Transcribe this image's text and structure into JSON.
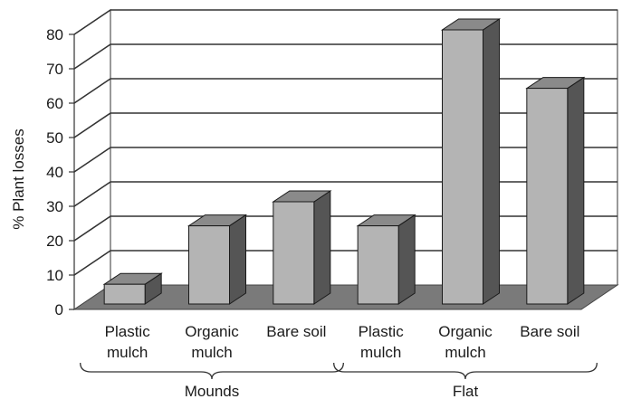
{
  "chart_data": {
    "type": "bar",
    "style": "3d",
    "ylabel": "% Plant losses",
    "ylim": [
      0,
      80
    ],
    "yticks": [
      "0",
      "10",
      "20",
      "30",
      "40",
      "50",
      "60",
      "70",
      "80"
    ],
    "categories": [
      {
        "line1": "Plastic",
        "line2": "mulch",
        "group": "Mounds"
      },
      {
        "line1": "Organic",
        "line2": "mulch",
        "group": "Mounds"
      },
      {
        "line1": "Bare soil",
        "line2": "",
        "group": "Mounds"
      },
      {
        "line1": "Plastic",
        "line2": "mulch",
        "group": "Flat"
      },
      {
        "line1": "Organic",
        "line2": "mulch",
        "group": "Flat"
      },
      {
        "line1": "Bare soil",
        "line2": "",
        "group": "Flat"
      }
    ],
    "values": [
      6,
      23,
      30,
      23,
      80,
      63
    ],
    "groups": [
      {
        "label": "Mounds",
        "first": 0,
        "last": 2
      },
      {
        "label": "Flat",
        "first": 3,
        "last": 5
      }
    ],
    "grid": true,
    "colors": {
      "bar_front": "#b4b4b4",
      "bar_side": "#555555",
      "bar_top": "#8a8a8a",
      "floor": "#7a7a7a",
      "wall": "#ffffff",
      "grid": "#333333"
    }
  }
}
